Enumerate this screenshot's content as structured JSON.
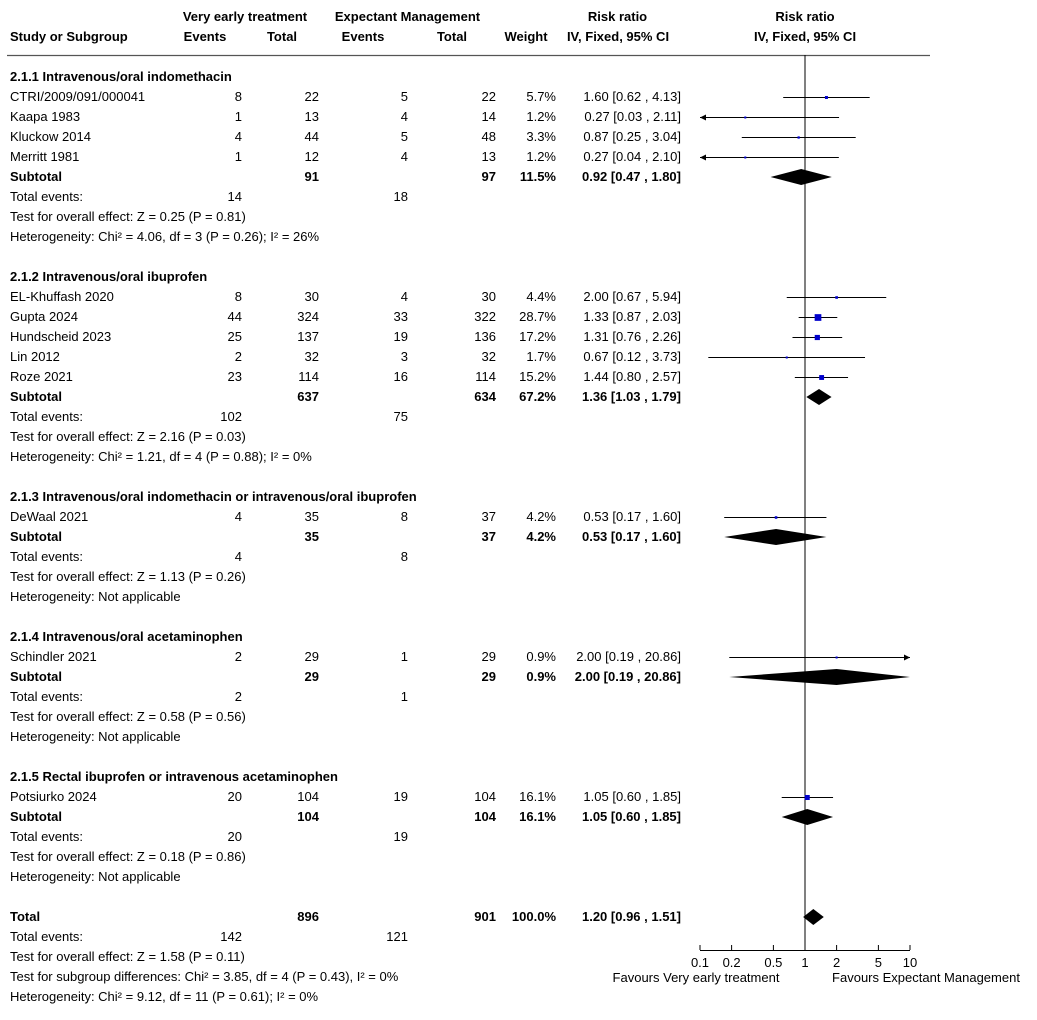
{
  "header": {
    "group_exp": "Very early treatment",
    "group_ctrl": "Expectant Management",
    "rr_top": "Risk ratio",
    "rr_plot_top": "Risk ratio",
    "study": "Study or Subgroup",
    "events1": "Events",
    "total1": "Total",
    "events2": "Events",
    "total2": "Total",
    "weight": "Weight",
    "rr_sub": "IV, Fixed, 95% CI",
    "rr_plot_sub": "IV, Fixed, 95% CI"
  },
  "groups": [
    {
      "title": "2.1.1 Intravenous/oral indomethacin",
      "studies": [
        {
          "name": "CTRI/2009/091/000041",
          "e1": "8",
          "t1": "22",
          "e2": "5",
          "t2": "22",
          "w": "5.7%",
          "ci": "1.60 [0.62 , 4.13]"
        },
        {
          "name": "Kaapa 1983",
          "e1": "1",
          "t1": "13",
          "e2": "4",
          "t2": "14",
          "w": "1.2%",
          "ci": "0.27 [0.03 , 2.11]"
        },
        {
          "name": "Kluckow 2014",
          "e1": "4",
          "t1": "44",
          "e2": "5",
          "t2": "48",
          "w": "3.3%",
          "ci": "0.87 [0.25 , 3.04]"
        },
        {
          "name": "Merritt 1981",
          "e1": "1",
          "t1": "12",
          "e2": "4",
          "t2": "13",
          "w": "1.2%",
          "ci": "0.27 [0.04 , 2.10]"
        }
      ],
      "subtotal": {
        "label": "Subtotal",
        "t1": "91",
        "t2": "97",
        "w": "11.5%",
        "ci": "0.92 [0.47 , 1.80]"
      },
      "events": {
        "label": "Total events:",
        "e1": "14",
        "e2": "18"
      },
      "effect": "Test for overall effect: Z = 0.25 (P = 0.81)",
      "het": "Heterogeneity: Chi² = 4.06, df = 3 (P = 0.26); I² = 26%"
    },
    {
      "title": "2.1.2 Intravenous/oral ibuprofen",
      "studies": [
        {
          "name": "EL-Khuffash 2020",
          "e1": "8",
          "t1": "30",
          "e2": "4",
          "t2": "30",
          "w": "4.4%",
          "ci": "2.00 [0.67 , 5.94]"
        },
        {
          "name": "Gupta 2024",
          "e1": "44",
          "t1": "324",
          "e2": "33",
          "t2": "322",
          "w": "28.7%",
          "ci": "1.33 [0.87 , 2.03]"
        },
        {
          "name": "Hundscheid 2023",
          "e1": "25",
          "t1": "137",
          "e2": "19",
          "t2": "136",
          "w": "17.2%",
          "ci": "1.31 [0.76 , 2.26]"
        },
        {
          "name": "Lin 2012",
          "e1": "2",
          "t1": "32",
          "e2": "3",
          "t2": "32",
          "w": "1.7%",
          "ci": "0.67 [0.12 , 3.73]"
        },
        {
          "name": "Roze 2021",
          "e1": "23",
          "t1": "114",
          "e2": "16",
          "t2": "114",
          "w": "15.2%",
          "ci": "1.44 [0.80 , 2.57]"
        }
      ],
      "subtotal": {
        "label": "Subtotal",
        "t1": "637",
        "t2": "634",
        "w": "67.2%",
        "ci": "1.36 [1.03 , 1.79]"
      },
      "events": {
        "label": "Total events:",
        "e1": "102",
        "e2": "75"
      },
      "effect": "Test for overall effect: Z = 2.16 (P = 0.03)",
      "het": "Heterogeneity: Chi² = 1.21, df = 4 (P = 0.88); I² = 0%"
    },
    {
      "title": "2.1.3 Intravenous/oral indomethacin or intravenous/oral ibuprofen",
      "studies": [
        {
          "name": "DeWaal 2021",
          "e1": "4",
          "t1": "35",
          "e2": "8",
          "t2": "37",
          "w": "4.2%",
          "ci": "0.53 [0.17 , 1.60]"
        }
      ],
      "subtotal": {
        "label": "Subtotal",
        "t1": "35",
        "t2": "37",
        "w": "4.2%",
        "ci": "0.53 [0.17 , 1.60]"
      },
      "events": {
        "label": "Total events:",
        "e1": "4",
        "e2": "8"
      },
      "effect": "Test for overall effect: Z = 1.13 (P = 0.26)",
      "het": "Heterogeneity: Not applicable"
    },
    {
      "title": "2.1.4 Intravenous/oral acetaminophen",
      "studies": [
        {
          "name": "Schindler 2021",
          "e1": "2",
          "t1": "29",
          "e2": "1",
          "t2": "29",
          "w": "0.9%",
          "ci": "2.00 [0.19 , 20.86]"
        }
      ],
      "subtotal": {
        "label": "Subtotal",
        "t1": "29",
        "t2": "29",
        "w": "0.9%",
        "ci": "2.00 [0.19 , 20.86]"
      },
      "events": {
        "label": "Total events:",
        "e1": "2",
        "e2": "1"
      },
      "effect": "Test for overall effect: Z = 0.58 (P = 0.56)",
      "het": "Heterogeneity: Not applicable"
    },
    {
      "title": "2.1.5 Rectal ibuprofen or intravenous acetaminophen",
      "studies": [
        {
          "name": "Potsiurko 2024",
          "e1": "20",
          "t1": "104",
          "e2": "19",
          "t2": "104",
          "w": "16.1%",
          "ci": "1.05 [0.60 , 1.85]"
        }
      ],
      "subtotal": {
        "label": "Subtotal",
        "t1": "104",
        "t2": "104",
        "w": "16.1%",
        "ci": "1.05 [0.60 , 1.85]"
      },
      "events": {
        "label": "Total events:",
        "e1": "20",
        "e2": "19"
      },
      "effect": "Test for overall effect: Z = 0.18 (P = 0.86)",
      "het": "Heterogeneity: Not applicable"
    }
  ],
  "total": {
    "label": "Total",
    "t1": "896",
    "t2": "901",
    "w": "100.0%",
    "ci": "1.20 [0.96 , 1.51]",
    "events": {
      "label": "Total events:",
      "e1": "142",
      "e2": "121"
    },
    "effect": "Test for overall effect: Z = 1.58 (P = 0.11)",
    "subgroup": "Test for subgroup differences: Chi² = 3.85, df = 4 (P = 0.43), I² = 0%",
    "het": "Heterogeneity: Chi² = 9.12, df = 11 (P = 0.61); I² = 0%"
  },
  "chart_data": {
    "type": "forest",
    "scale": "log",
    "xlim": [
      0.1,
      10
    ],
    "reference_line": 1,
    "ticks": [
      0.1,
      0.2,
      0.5,
      1,
      2,
      5,
      10
    ],
    "tick_labels": [
      "0.1",
      "0.2",
      "0.5",
      "1",
      "2",
      "5",
      "10"
    ],
    "favours_left": "Favours Very early treatment",
    "favours_right": "Favours Expectant Management",
    "colors": {
      "study_marker": "#0000cc",
      "diamond": "#000000",
      "line": "#000000"
    },
    "study_estimates": [
      {
        "study": "CTRI/2009/091/000041",
        "rr": 1.6,
        "lo": 0.62,
        "hi": 4.13,
        "weight": 5.7
      },
      {
        "study": "Kaapa 1983",
        "rr": 0.27,
        "lo": 0.03,
        "hi": 2.11,
        "weight": 1.2
      },
      {
        "study": "Kluckow 2014",
        "rr": 0.87,
        "lo": 0.25,
        "hi": 3.04,
        "weight": 3.3
      },
      {
        "study": "Merritt 1981",
        "rr": 0.27,
        "lo": 0.04,
        "hi": 2.1,
        "weight": 1.2
      },
      {
        "study": "EL-Khuffash 2020",
        "rr": 2.0,
        "lo": 0.67,
        "hi": 5.94,
        "weight": 4.4
      },
      {
        "study": "Gupta 2024",
        "rr": 1.33,
        "lo": 0.87,
        "hi": 2.03,
        "weight": 28.7
      },
      {
        "study": "Hundscheid 2023",
        "rr": 1.31,
        "lo": 0.76,
        "hi": 2.26,
        "weight": 17.2
      },
      {
        "study": "Lin 2012",
        "rr": 0.67,
        "lo": 0.12,
        "hi": 3.73,
        "weight": 1.7
      },
      {
        "study": "Roze 2021",
        "rr": 1.44,
        "lo": 0.8,
        "hi": 2.57,
        "weight": 15.2
      },
      {
        "study": "DeWaal 2021",
        "rr": 0.53,
        "lo": 0.17,
        "hi": 1.6,
        "weight": 4.2
      },
      {
        "study": "Schindler 2021",
        "rr": 2.0,
        "lo": 0.19,
        "hi": 20.86,
        "weight": 0.9
      },
      {
        "study": "Potsiurko 2024",
        "rr": 1.05,
        "lo": 0.6,
        "hi": 1.85,
        "weight": 16.1
      }
    ],
    "pooled_estimates": [
      {
        "label": "2.1.1 Subtotal",
        "rr": 0.92,
        "lo": 0.47,
        "hi": 1.8
      },
      {
        "label": "2.1.2 Subtotal",
        "rr": 1.36,
        "lo": 1.03,
        "hi": 1.79
      },
      {
        "label": "2.1.3 Subtotal",
        "rr": 0.53,
        "lo": 0.17,
        "hi": 1.6
      },
      {
        "label": "2.1.4 Subtotal",
        "rr": 2.0,
        "lo": 0.19,
        "hi": 20.86
      },
      {
        "label": "2.1.5 Subtotal",
        "rr": 1.05,
        "lo": 0.6,
        "hi": 1.85
      },
      {
        "label": "Total",
        "rr": 1.2,
        "lo": 0.96,
        "hi": 1.51
      }
    ]
  }
}
